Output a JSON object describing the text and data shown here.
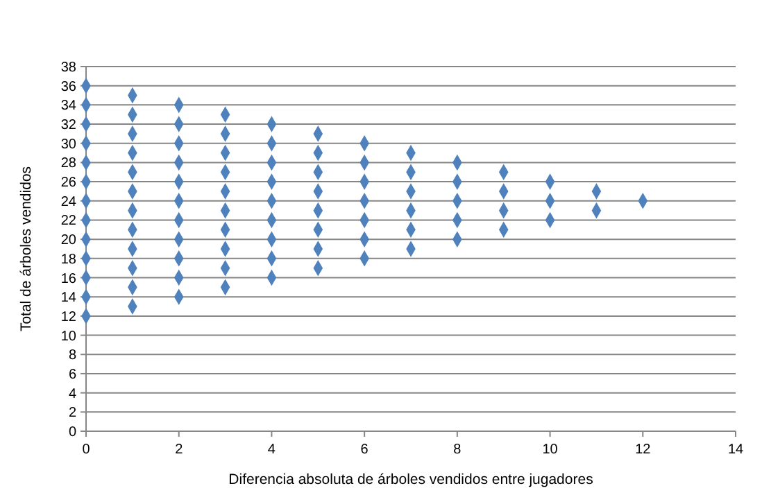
{
  "chart_data": {
    "type": "scatter",
    "xlabel": "Diferencia absoluta de árboles vendidos entre jugadores",
    "ylabel": "Total de árboles vendidos",
    "x": [
      0,
      0,
      0,
      0,
      0,
      0,
      0,
      0,
      0,
      0,
      0,
      0,
      0,
      1,
      1,
      1,
      1,
      1,
      1,
      1,
      1,
      1,
      1,
      1,
      1,
      2,
      2,
      2,
      2,
      2,
      2,
      2,
      2,
      2,
      2,
      2,
      3,
      3,
      3,
      3,
      3,
      3,
      3,
      3,
      3,
      3,
      4,
      4,
      4,
      4,
      4,
      4,
      4,
      4,
      4,
      5,
      5,
      5,
      5,
      5,
      5,
      5,
      5,
      6,
      6,
      6,
      6,
      6,
      6,
      6,
      7,
      7,
      7,
      7,
      7,
      7,
      8,
      8,
      8,
      8,
      8,
      9,
      9,
      9,
      9,
      10,
      10,
      10,
      11,
      11,
      12
    ],
    "values": [
      12,
      14,
      16,
      18,
      20,
      22,
      24,
      26,
      28,
      30,
      32,
      34,
      36,
      13,
      15,
      17,
      19,
      21,
      23,
      25,
      27,
      29,
      31,
      33,
      35,
      14,
      16,
      18,
      20,
      22,
      24,
      26,
      28,
      30,
      32,
      34,
      15,
      17,
      19,
      21,
      23,
      25,
      27,
      29,
      31,
      33,
      16,
      18,
      20,
      22,
      24,
      26,
      28,
      30,
      32,
      17,
      19,
      21,
      23,
      25,
      27,
      29,
      31,
      18,
      20,
      22,
      24,
      26,
      28,
      30,
      19,
      21,
      23,
      25,
      27,
      29,
      20,
      22,
      24,
      26,
      28,
      21,
      23,
      25,
      27,
      22,
      24,
      26,
      23,
      25,
      24
    ],
    "color": "#4f81bd",
    "marker": "diamond",
    "grid": "y",
    "xlim": [
      0,
      14
    ],
    "xticks": [
      0,
      2,
      4,
      6,
      8,
      10,
      12,
      14
    ],
    "ylim": [
      0,
      38
    ],
    "yticks": [
      0,
      2,
      4,
      6,
      8,
      10,
      12,
      14,
      16,
      18,
      20,
      22,
      24,
      26,
      28,
      30,
      32,
      34,
      36,
      38
    ]
  }
}
